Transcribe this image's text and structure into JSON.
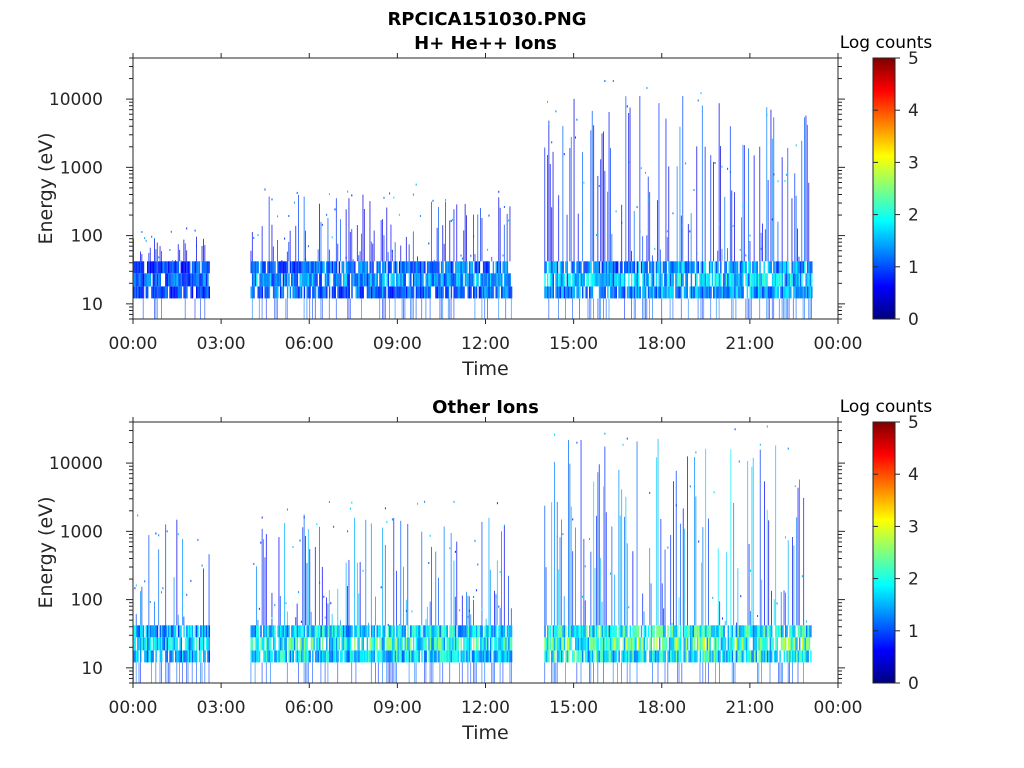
{
  "figure": {
    "title_line1": "RPCICA151030.PNG"
  },
  "chart_data": [
    {
      "type": "heatmap",
      "title": "H+ He++ Ions",
      "xlabel": "Time",
      "ylabel": "Energy (eV)",
      "y_scale": "log",
      "ylim": [
        6,
        40000
      ],
      "x_range_hours": [
        0,
        24
      ],
      "x_ticks": [
        "00:00",
        "03:00",
        "06:00",
        "09:00",
        "12:00",
        "15:00",
        "18:00",
        "21:00",
        "00:00"
      ],
      "y_ticks": [
        "10",
        "100",
        "1000",
        "10000"
      ],
      "colorbar": {
        "label": "Log counts",
        "range": [
          0,
          5
        ],
        "ticks": [
          "0",
          "1",
          "2",
          "3",
          "4",
          "5"
        ],
        "colormap": "jet"
      },
      "data_intervals_hours": [
        {
          "start": 0.0,
          "end": 2.6,
          "max_energy_eV": 100,
          "peak_log_counts": 1.5
        },
        {
          "start": 4.0,
          "end": 12.9,
          "max_energy_eV": 400,
          "peak_log_counts": 1.8
        },
        {
          "start": 14.0,
          "end": 17.7,
          "max_energy_eV": 15000,
          "peak_log_counts": 2.0
        },
        {
          "start": 17.7,
          "end": 23.1,
          "max_energy_eV": 12000,
          "peak_log_counts": 2.2
        }
      ]
    },
    {
      "type": "heatmap",
      "title": "Other Ions",
      "xlabel": "Time",
      "ylabel": "Energy (eV)",
      "y_scale": "log",
      "ylim": [
        6,
        40000
      ],
      "x_range_hours": [
        0,
        24
      ],
      "x_ticks": [
        "00:00",
        "03:00",
        "06:00",
        "09:00",
        "12:00",
        "15:00",
        "18:00",
        "21:00",
        "00:00"
      ],
      "y_ticks": [
        "10",
        "100",
        "1000",
        "10000"
      ],
      "colorbar": {
        "label": "Log counts",
        "range": [
          0,
          5
        ],
        "ticks": [
          "0",
          "1",
          "2",
          "3",
          "4",
          "5"
        ],
        "colormap": "jet"
      },
      "data_intervals_hours": [
        {
          "start": 0.0,
          "end": 2.6,
          "max_energy_eV": 1500,
          "peak_log_counts": 2.3
        },
        {
          "start": 4.0,
          "end": 12.9,
          "max_energy_eV": 2000,
          "peak_log_counts": 2.7
        },
        {
          "start": 14.0,
          "end": 23.1,
          "max_energy_eV": 25000,
          "peak_log_counts": 3.0
        }
      ]
    }
  ]
}
